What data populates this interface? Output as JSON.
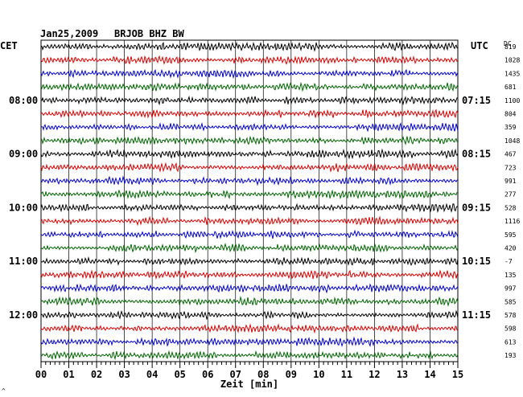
{
  "header": {
    "date": "Jan25,2009",
    "station": "BRJOB BHZ BW"
  },
  "left_zone_label": "CET",
  "right_zone_label": "UTC",
  "dc_header": "DC",
  "left_hour_labels": [
    "08:00",
    "09:00",
    "10:00",
    "11:00",
    "12:00"
  ],
  "right_hour_labels": [
    "07:15",
    "08:15",
    "09:15",
    "10:15",
    "11:15"
  ],
  "corner_mark": "^",
  "colors": {
    "trace_cycle": [
      "#000000",
      "#d40000",
      "#0000c8",
      "#006400"
    ],
    "grid": "#000000",
    "background": "#ffffff"
  },
  "chart_data": {
    "type": "line",
    "title": "Jan25,2009   BRJOB BHZ BW",
    "xlabel": "Zeit [min]",
    "ylabel": "",
    "xlim": [
      0,
      15
    ],
    "x_ticks": [
      "00",
      "01",
      "02",
      "03",
      "04",
      "05",
      "06",
      "07",
      "08",
      "09",
      "10",
      "11",
      "12",
      "13",
      "14",
      "15"
    ],
    "grid": true,
    "rows": 24,
    "row_interval_minutes": 15,
    "dc_offsets": [
      819,
      1028,
      1435,
      681,
      1100,
      804,
      359,
      1048,
      467,
      723,
      991,
      277,
      528,
      1116,
      595,
      420,
      -7,
      135,
      997,
      585,
      578,
      598,
      613,
      193
    ],
    "hour_label_rows": [
      4,
      8,
      12,
      16,
      20
    ]
  }
}
